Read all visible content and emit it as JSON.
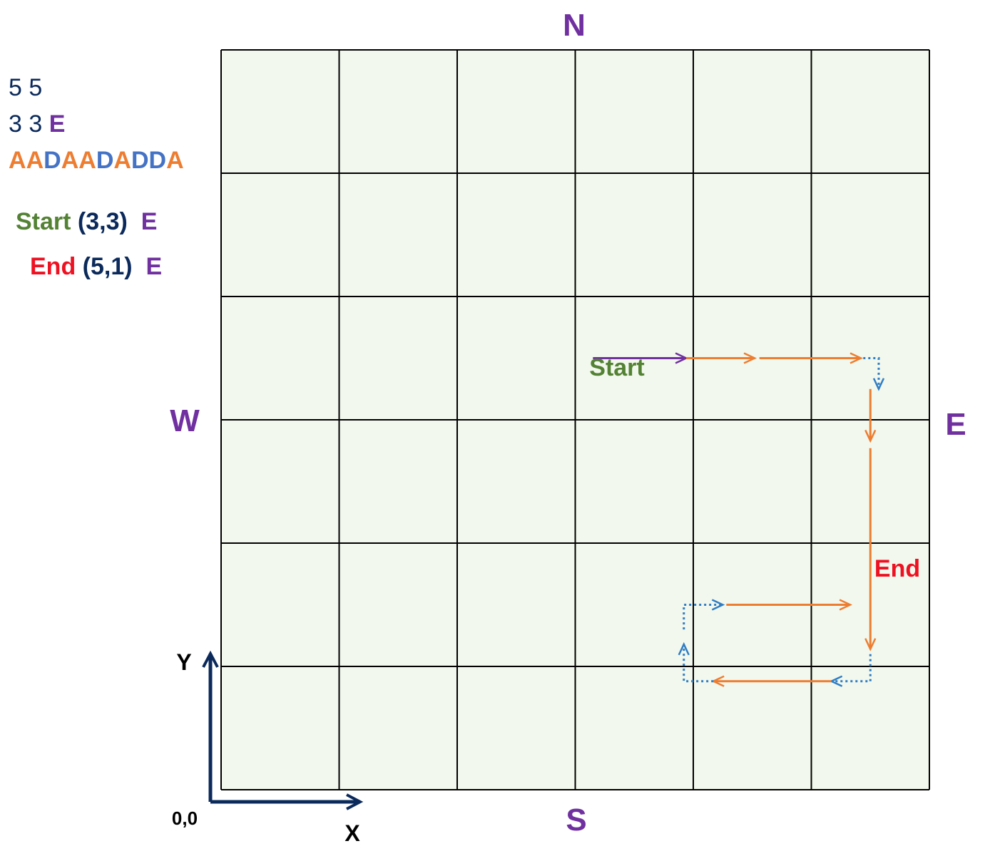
{
  "input": {
    "grid_size": "5 5",
    "position": "3 3",
    "facing": "E",
    "commands": [
      "A",
      "A",
      "D",
      "A",
      "A",
      "D",
      "A",
      "D",
      "D",
      "A"
    ]
  },
  "status": {
    "start_label": "Start",
    "start_coord": "(3,3)",
    "start_dir": "E",
    "end_label": "End",
    "end_coord": "(5,1)",
    "end_dir": "E"
  },
  "compass": {
    "north": "N",
    "south": "S",
    "east": "E",
    "west": "W"
  },
  "axes": {
    "y_label": "Y",
    "x_label": "X",
    "origin_label": "0,0"
  },
  "path": {
    "start_label": "Start",
    "end_label": "End",
    "segments": [
      {
        "kind": "initial",
        "from": [
          3,
          3
        ],
        "to": [
          3,
          3
        ]
      },
      {
        "kind": "advance",
        "from": [
          3,
          3
        ],
        "to": [
          4,
          3
        ]
      },
      {
        "kind": "advance",
        "from": [
          4,
          3
        ],
        "to": [
          5,
          3
        ]
      },
      {
        "kind": "turn",
        "from": [
          5,
          3
        ],
        "to": [
          5,
          3
        ]
      },
      {
        "kind": "advance",
        "from": [
          5,
          3
        ],
        "to": [
          5,
          2
        ]
      },
      {
        "kind": "advance",
        "from": [
          5,
          2
        ],
        "to": [
          5,
          1
        ]
      },
      {
        "kind": "turn",
        "from": [
          5,
          1
        ],
        "to": [
          5,
          1
        ]
      },
      {
        "kind": "advance",
        "from": [
          5,
          1
        ],
        "to": [
          4,
          1
        ]
      },
      {
        "kind": "turn",
        "from": [
          4,
          1
        ],
        "to": [
          4,
          1
        ]
      },
      {
        "kind": "turn",
        "from": [
          4,
          1
        ],
        "to": [
          4,
          1
        ]
      },
      {
        "kind": "advance",
        "from": [
          4,
          1
        ],
        "to": [
          5,
          1
        ]
      }
    ]
  },
  "colors": {
    "grid_fill": "#f2f8ed",
    "grid_line": "#000000",
    "advance": "#ed7d31",
    "turn": "#2f7dc4",
    "initial": "#7030a0",
    "axis": "#0b2a5b",
    "start": "#548235",
    "end": "#ee1122",
    "compass": "#7030a0"
  }
}
